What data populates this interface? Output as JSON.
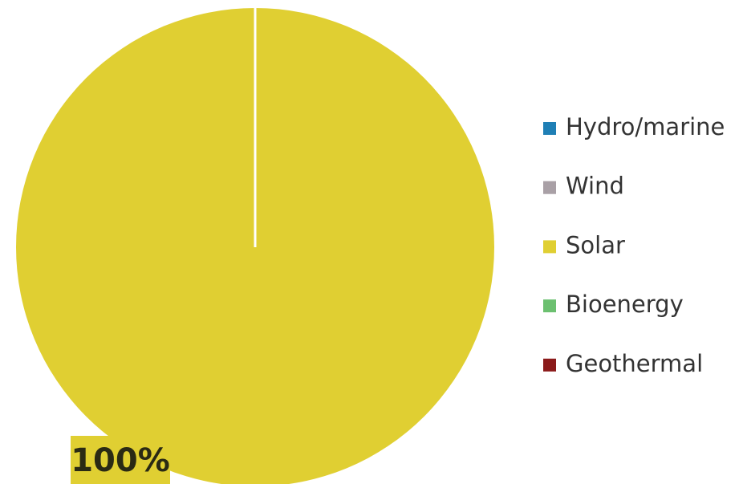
{
  "chart_data": {
    "type": "pie",
    "categories": [
      "Hydro/marine",
      "Wind",
      "Solar",
      "Bioenergy",
      "Geothermal"
    ],
    "values": [
      0,
      0,
      100,
      0,
      0
    ],
    "value_labels": [
      null,
      null,
      "100%",
      null,
      null
    ],
    "colors": [
      "#1f7fb5",
      "#a9a0a6",
      "#e0cf32",
      "#6cc070",
      "#8b1a1a"
    ],
    "legend": "right"
  }
}
